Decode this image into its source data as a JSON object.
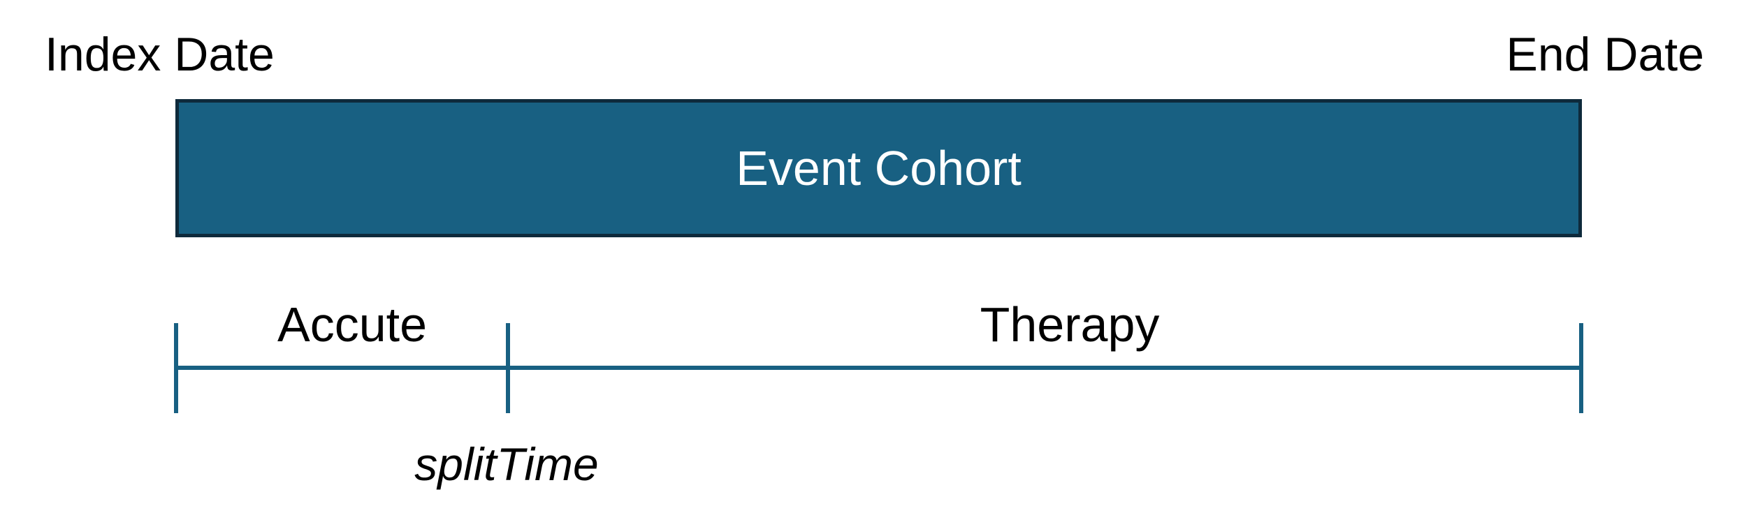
{
  "labels": {
    "index_date": "Index Date",
    "end_date": "End Date",
    "cohort": "Event Cohort",
    "accute": "Accute",
    "therapy": "Therapy",
    "split_time": "splitTime"
  },
  "colors": {
    "cohort_fill": "#186082",
    "cohort_border": "#0e2a3b",
    "cohort_text": "#ffffff",
    "timeline_line": "#186082",
    "text": "#000000"
  }
}
